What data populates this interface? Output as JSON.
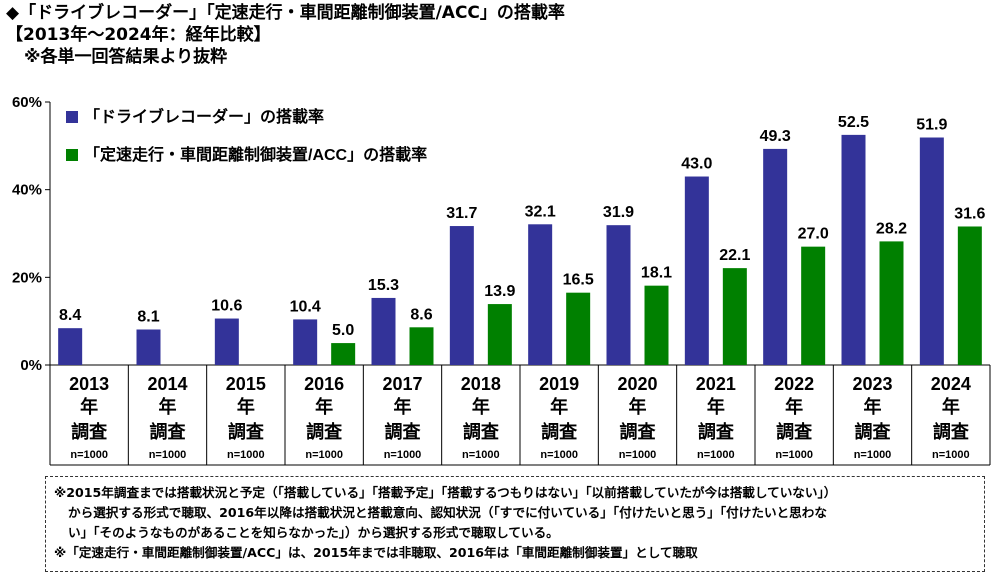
{
  "titles": {
    "line1": "◆「ドライブレコーダー」「定速走行・車間距離制御装置/ACC」の搭載率",
    "line2": "【2013年～2024年：経年比較】",
    "line3": "※各単一回答結果より抜粋"
  },
  "chart_data": {
    "type": "bar",
    "categories": [
      "2013",
      "2014",
      "2015",
      "2016",
      "2017",
      "2018",
      "2019",
      "2020",
      "2021",
      "2022",
      "2023",
      "2024"
    ],
    "category_suffix": [
      "年",
      "調査"
    ],
    "sample_size": "n=1000",
    "series": [
      {
        "name": "「ドライブレコーダー」の搭載率",
        "color": "#333399",
        "values": [
          8.4,
          8.1,
          10.6,
          10.4,
          15.3,
          31.7,
          32.1,
          31.9,
          43.0,
          49.3,
          52.5,
          51.9
        ]
      },
      {
        "name": "「定速走行・車間距離制御装置/ACC」の搭載率",
        "color": "#008000",
        "values": [
          null,
          null,
          null,
          5.0,
          8.6,
          13.9,
          16.5,
          18.1,
          22.1,
          27.0,
          28.2,
          31.6
        ]
      }
    ],
    "ylim": [
      0,
      60
    ],
    "yticks": [
      "0%",
      "20%",
      "40%",
      "60%"
    ],
    "grid": false,
    "legend": "top-left"
  },
  "notes": {
    "line1": "※2015年調査までは搭載状況と予定（「搭載している」「搭載予定」「搭載するつもりはない」「以前搭載していたが今は搭載していない」）",
    "line2": "から選択する形式で聴取、2016年以降は搭載状況と搭載意向、認知状況（「すでに付いている」「付けたいと思う」「付けたいと思わな",
    "line3": "い」「そのようなものがあることを知らなかった」）から選択する形式で聴取している。",
    "line4": "※「定速走行・車間距離制御装置/ACC」は、2015年までは非聴取、2016年は「車間距離制御装置」として聴取"
  }
}
